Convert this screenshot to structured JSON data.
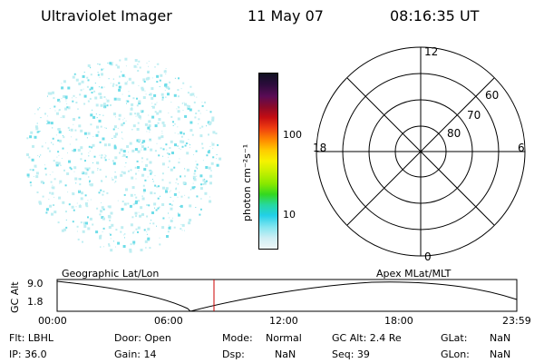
{
  "header": {
    "title": "Ultraviolet Imager",
    "date": "11 May 07",
    "time": "08:16:35 UT"
  },
  "colorbar": {
    "unit_label": "photon cm⁻²s⁻¹",
    "ticks": [
      "100",
      "10"
    ],
    "colors": [
      "#111122",
      "#2a0c3a",
      "#5a0b55",
      "#8a0a2a",
      "#c40d12",
      "#ee3b10",
      "#ff8a00",
      "#ffcc00",
      "#f6f200",
      "#c8f000",
      "#88e800",
      "#33d820",
      "#27d8a0",
      "#22d0e8",
      "#88e6f0",
      "#cfeef4",
      "#eef6f8"
    ]
  },
  "polar": {
    "labels": {
      "top": "12",
      "bottom": "0",
      "left": "18",
      "right": "6"
    },
    "rings": [
      "60",
      "70",
      "80"
    ]
  },
  "timeline": {
    "left_label": "Geographic Lat/Lon",
    "right_label": "Apex MLat/MLT",
    "axis_title": "GC Alt",
    "y_ticks": [
      "9.0",
      "1.8"
    ],
    "x_ticks": [
      "00:00",
      "06:00",
      "12:00",
      "18:00",
      "23:59"
    ],
    "marker_color": "#cc0000"
  },
  "status": {
    "flt": "Flt: LBHL",
    "ip": "IP: 36.0",
    "door": "Door: Open",
    "gain": "Gain: 14",
    "mode_label": "Mode:",
    "mode_value": "Normal",
    "dsp_label": "Dsp:",
    "dsp_value": "NaN",
    "gcalt": "GC Alt: 2.4 Re",
    "seq": "Seq: 39",
    "glat_label": "GLat:",
    "glat_value": "NaN",
    "glon_label": "GLon:",
    "glon_value": "NaN"
  },
  "image_colors": {
    "speckle": "#6fdde8",
    "faint": "#bfeef2"
  }
}
